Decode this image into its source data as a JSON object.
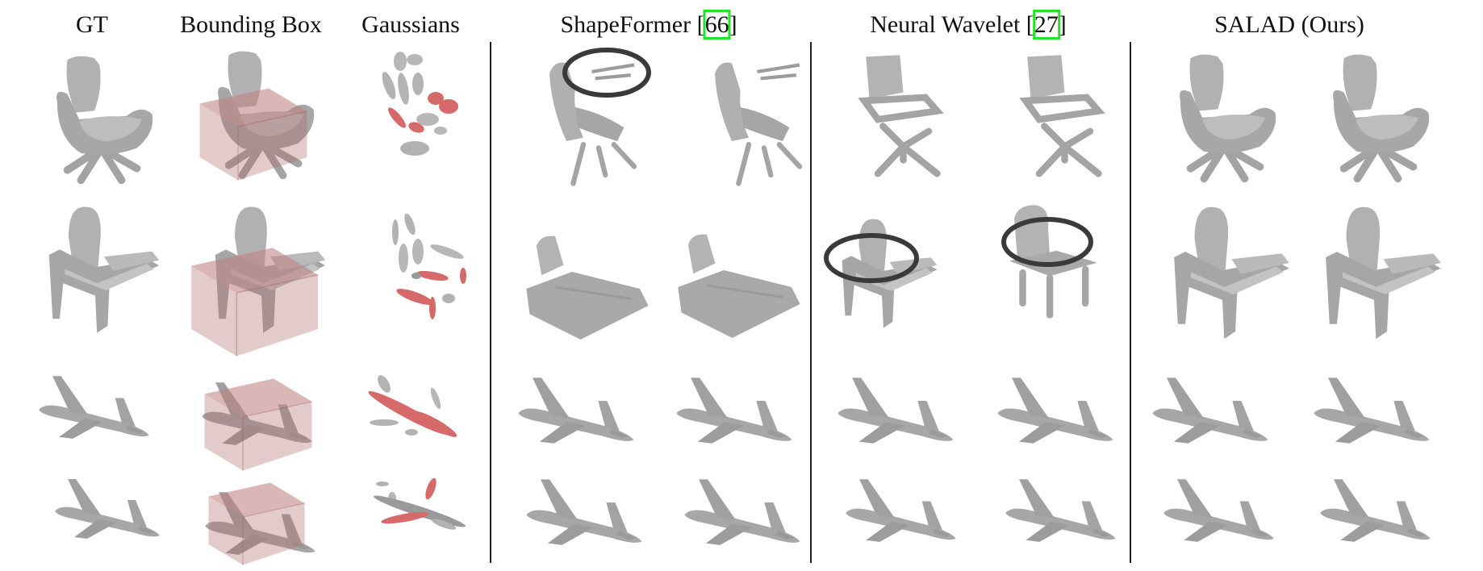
{
  "columns": [
    {
      "label": "GT"
    },
    {
      "label": "Bounding Box"
    },
    {
      "label": "Gaussians"
    },
    {
      "label": "ShapeFormer [",
      "ref": "66",
      "suffix": "]"
    },
    {
      "label": "Neural Wavelet [",
      "ref": "27",
      "suffix": "]"
    },
    {
      "label": "SALAD (Ours)"
    }
  ],
  "rows": [
    {
      "object": "chair"
    },
    {
      "object": "chair"
    },
    {
      "object": "airplane"
    },
    {
      "object": "airplane"
    }
  ],
  "colors": {
    "shape_gray": "#a9a9a9",
    "shape_dark": "#8e8e8e",
    "bbox_tint": "#b26b6b",
    "gaussian_gray": "#b3b3b3",
    "gaussian_red": "#d66a6a",
    "highlight_circle": "#3a3a3a",
    "citation_box": "#22e52a"
  }
}
